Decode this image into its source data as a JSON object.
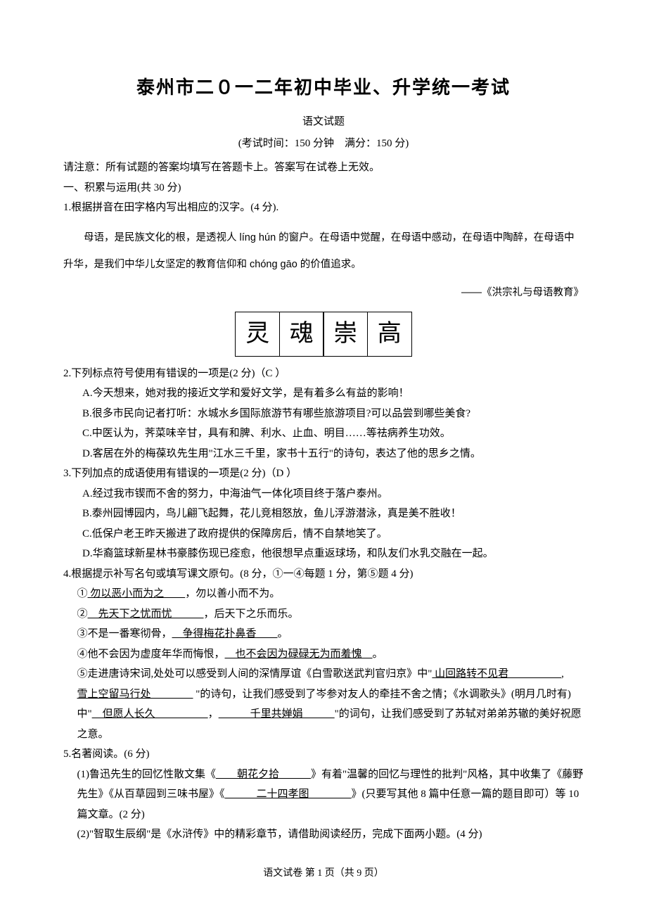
{
  "colors": {
    "text": "#000000",
    "bg": "#ffffff"
  },
  "fonts": {
    "body": "SimSun, serif",
    "alt": "Microsoft YaHei, sans-serif",
    "kai": "KaiTi, serif"
  },
  "header": {
    "title": "泰州市二０一二年初中毕业、升学统一考试",
    "subtitle": "语文试题",
    "exam_info": "(考试时间：150 分钟 满分：150 分)",
    "notice": "请注意：所有试题的答案均填写在答题卡上。答案写在试卷上无效。"
  },
  "section1": "一、积累与运用(共 30 分)",
  "q1": {
    "stem": "1.根据拼音在田字格内写出相应的汉字。(4 分).",
    "para": "母语，是民族文化的根，是透视人 líng hún 的窗户。在母语中觉醒，在母语中感动，在母语中陶醉，在母语中升华，是我们中华儿女坚定的教育信仰和 chóng gāo 的价值追求。",
    "source": "——《洪宗礼与母语教育》",
    "chars": [
      "灵",
      "魂",
      "崇",
      "高"
    ]
  },
  "q2": {
    "stem": "2.下列标点符号使用有错误的一项是(2 分)（C ）",
    "options": [
      "A.今天想来，她对我的接近文学和爱好文学，是有着多么有益的影响！",
      "B.很多市民向记者打听：水城水乡国际旅游节有哪些旅游项目?可以品尝到哪些美食?",
      "C.中医认为，荠菜味辛甘，具有和脾、利水、止血、明目……等祛病养生功效。",
      "D.客居在外的梅葆玖先生用\"江水三千里，家书十五行\"的诗句，表达了他的思乡之情。"
    ]
  },
  "q3": {
    "stem": "3.下列加点的成语使用有错误的一项是(2 分)（D ）",
    "options": [
      "A.经过我市锲而不舍的努力，中海油气一体化项目终于落户泰州。",
      "B.泰州园博园内，鸟儿翩飞起舞，花儿竞相怒放，鱼儿浮游潜泳，真是美不胜收！",
      "C.低保户老王昨天搬进了政府提供的保障房后，情不自禁地笑了。",
      "D.华裔篮球新星林书豪膝伤现已痊愈，他很想早点重返球场，和队友们水乳交融在一起。"
    ]
  },
  "q4": {
    "stem": "4.根据提示补写名句或填写课文原句。(8 分，①一④每题 1 分，第⑤题 4 分)",
    "items": {
      "i1_pre": "①",
      "i1_u": " 勿以恶小而为之  ",
      "i1_post": "，勿以善小而不为。",
      "i2_pre": "②",
      "i2_u": " 先天下之忧而忧   ",
      "i2_post": "，后天下之乐而乐。",
      "i3_pre": "③不是一番寒彻骨，",
      "i3_u": " 争得梅花扑鼻香  ",
      "i3_post": "。",
      "i4_pre": "④他不会因为虚度年华而悔恨，",
      "i4_u": " 也不会因为碌碌无为而羞愧 ",
      "i4_post": "。",
      "i5a_pre": "⑤走进唐诗宋词,处处可以感受到人间的深情厚谊《白雪歌送武判官归京》中\"",
      "i5a_u": " 山回路转不见君     ",
      "i5b_u": "雪上空留马行处    ",
      "i5b_post": " \"的诗句，让我们感受到了岑参对友人的牵挂不舍之情；《水调歌头》(明月几时有)中\"",
      "i5c_u": " 但愿人长久     ",
      "i5c_mid": "，",
      "i5d_u": "   千里共婵娟   ",
      "i5d_post": "\"的词句，让我们感受到了苏轼对弟弟苏辙的美好祝愿之意。"
    }
  },
  "q5": {
    "stem": "5.名著阅读。(6 分)",
    "s1_pre": "(1)鲁迅先生的回忆性散文集《",
    "s1_u1": "  朝花夕拾   ",
    "s1_mid1": "》有着\"温馨的回忆与理性的批判\"风格，其中收集了《藤野先生》《从百草园到三味书屋》《",
    "s1_u2": "   二十四孝图    ",
    "s1_mid2": "》(只要写其他 8 篇中任意一篇的题目即可）等 10 篇文章。(2 分)",
    "s2": "(2)\"智取生辰纲\"是《水浒传》中的精彩章节，请借助阅读经历，完成下面两小题。(4 分)"
  },
  "footer": "语文试卷 第 1 页（共 9 页）"
}
